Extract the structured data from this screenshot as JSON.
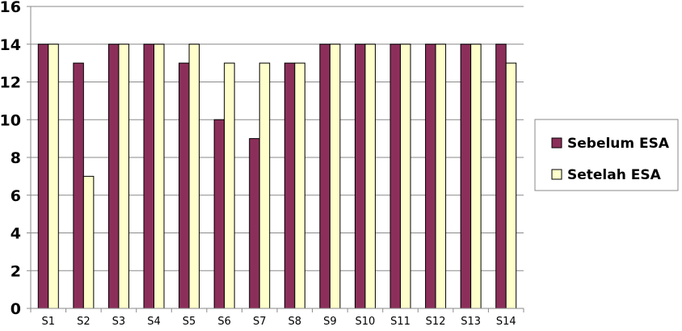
{
  "chart_data": {
    "type": "bar",
    "title": "",
    "xlabel": "",
    "ylabel": "",
    "categories": [
      "S1",
      "S2",
      "S3",
      "S4",
      "S5",
      "S6",
      "S7",
      "S8",
      "S9",
      "S10",
      "S11",
      "S12",
      "S13",
      "S14"
    ],
    "series": [
      {
        "name": "Sebelum ESA",
        "color": "#8B2F5A",
        "values": [
          14,
          13,
          14,
          14,
          13,
          10,
          9,
          13,
          14,
          14,
          14,
          14,
          14,
          14
        ]
      },
      {
        "name": "Setelah ESA",
        "color": "#FFFFCC",
        "values": [
          14,
          7,
          14,
          14,
          14,
          13,
          13,
          13,
          14,
          14,
          14,
          14,
          14,
          13
        ]
      }
    ],
    "ylim": [
      0,
      16
    ],
    "yticks": [
      0,
      2,
      4,
      6,
      8,
      10,
      12,
      14,
      16
    ],
    "grid": true,
    "legend_position": "right"
  }
}
